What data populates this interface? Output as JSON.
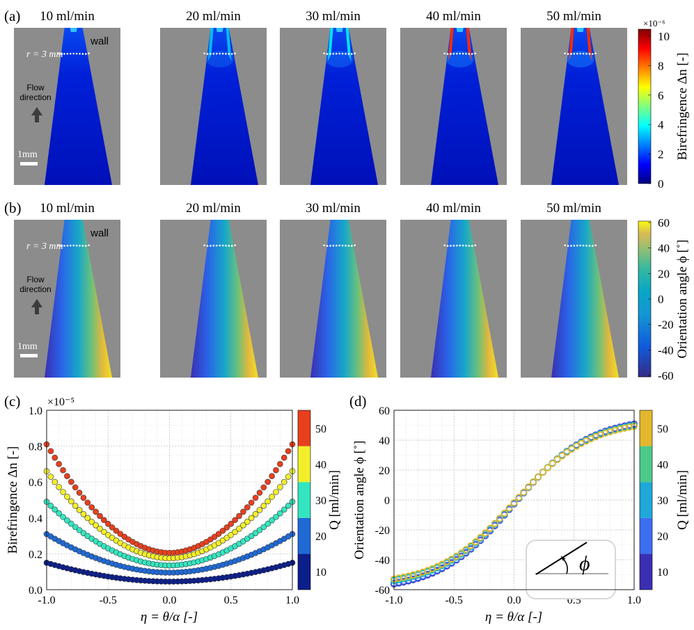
{
  "panels": {
    "a": {
      "label": "(a)",
      "flow_rates": [
        "10 ml/min",
        "20 ml/min",
        "30 ml/min",
        "40 ml/min",
        "50 ml/min"
      ],
      "wall_label": "wall",
      "radius_label": "r = 3 mm",
      "flow_label_1": "Flow",
      "flow_label_2": "direction",
      "scale_label": "1mm",
      "colorbar": {
        "label": "Birefringence Δn [-]",
        "exponent": "×10⁻⁶",
        "ticks": [
          "0",
          "2",
          "4",
          "6",
          "8",
          "10"
        ],
        "colormap": "jet"
      }
    },
    "b": {
      "label": "(b)",
      "flow_rates": [
        "10 ml/min",
        "20 ml/min",
        "30 ml/min",
        "40 ml/min",
        "50 ml/min"
      ],
      "wall_label": "wall",
      "radius_label": "r = 3 mm",
      "flow_label_1": "Flow",
      "flow_label_2": "direction",
      "scale_label": "1mm",
      "colorbar": {
        "label": "Orientation angle ϕ [˚]",
        "ticks": [
          "-60",
          "-40",
          "-20",
          "0",
          "20",
          "40",
          "60"
        ],
        "colormap": "parula"
      }
    },
    "c": {
      "label": "(c)",
      "exponent": "×10⁻⁵"
    },
    "d": {
      "label": "(d)",
      "inset_symbol": "ϕ"
    }
  },
  "chart_data": [
    {
      "type": "scatter",
      "id": "c",
      "xlabel": "η = θ/α [-]",
      "ylabel": "Birefringence Δn [-]",
      "y_multiplier": "1e-5",
      "xlim": [
        -1.0,
        1.0
      ],
      "ylim": [
        0.0,
        1.0
      ],
      "xticks": [
        "-1.0",
        "-0.5",
        "0.0",
        "0.5",
        "1.0"
      ],
      "yticks": [
        "0.0",
        "0.2",
        "0.4",
        "0.6",
        "0.8",
        "1.0"
      ],
      "grid": true,
      "colorbar": {
        "label": "Q [ml/min]",
        "ticks": [
          "10",
          "20",
          "30",
          "40",
          "50"
        ]
      },
      "series": [
        {
          "name": "10",
          "color": "#0c1e8a",
          "center": 0.045,
          "edge": 0.15
        },
        {
          "name": "20",
          "color": "#1f6ad6",
          "center": 0.095,
          "edge": 0.31
        },
        {
          "name": "30",
          "color": "#33e6c0",
          "center": 0.135,
          "edge": 0.49
        },
        {
          "name": "40",
          "color": "#f2ef2a",
          "center": 0.175,
          "edge": 0.66
        },
        {
          "name": "50",
          "color": "#e8401e",
          "center": 0.205,
          "edge": 0.81
        }
      ]
    },
    {
      "type": "scatter",
      "id": "d",
      "xlabel": "η = θ/α [-]",
      "ylabel": "Orientation angle ϕ [˚]",
      "xlim": [
        -1.0,
        1.0
      ],
      "ylim": [
        -60,
        60
      ],
      "xticks": [
        "-1.0",
        "-0.5",
        "0.0",
        "0.5",
        "1.0"
      ],
      "yticks": [
        "-60",
        "-40",
        "-20",
        "0",
        "20",
        "40",
        "60"
      ],
      "grid": true,
      "colorbar": {
        "label": "Q [ml/min]",
        "ticks": [
          "10",
          "20",
          "30",
          "40",
          "50"
        ]
      },
      "series": [
        {
          "name": "10",
          "color": "#3a2fb3",
          "y_start": -55,
          "y_end": 52
        },
        {
          "name": "20",
          "color": "#3d6ef0",
          "y_start": -55,
          "y_end": 51
        },
        {
          "name": "30",
          "color": "#1fa8d8",
          "y_start": -54,
          "y_end": 50
        },
        {
          "name": "40",
          "color": "#4cc98a",
          "y_start": -54,
          "y_end": 49
        },
        {
          "name": "50",
          "color": "#e3b82e",
          "y_start": -54,
          "y_end": 48
        }
      ]
    }
  ]
}
